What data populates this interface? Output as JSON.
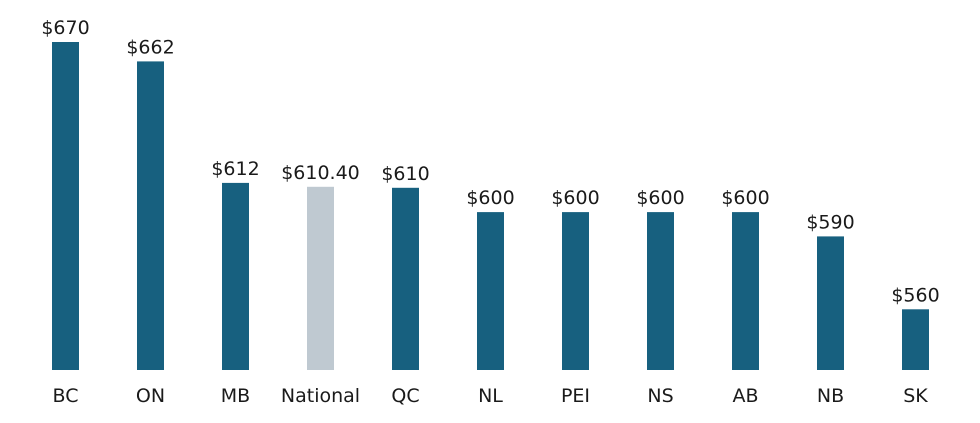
{
  "chart_data": {
    "type": "bar",
    "title": "",
    "xlabel": "",
    "ylabel": "",
    "categories": [
      "BC",
      "ON",
      "MB",
      "National",
      "QC",
      "NL",
      "PEI",
      "NS",
      "AB",
      "NB",
      "SK"
    ],
    "values": [
      670,
      662,
      612,
      610.4,
      610,
      600,
      600,
      600,
      600,
      590,
      560
    ],
    "value_labels": [
      "$670",
      "$662",
      "$612",
      "$610.40",
      "$610",
      "$600",
      "$600",
      "$600",
      "$600",
      "$590",
      "$560"
    ],
    "highlight_category": "National",
    "colors": {
      "bar": "#17607f",
      "highlight": "#bfc9d1"
    },
    "ylim": [
      535,
      670
    ],
    "grid": false,
    "legend": "none"
  }
}
